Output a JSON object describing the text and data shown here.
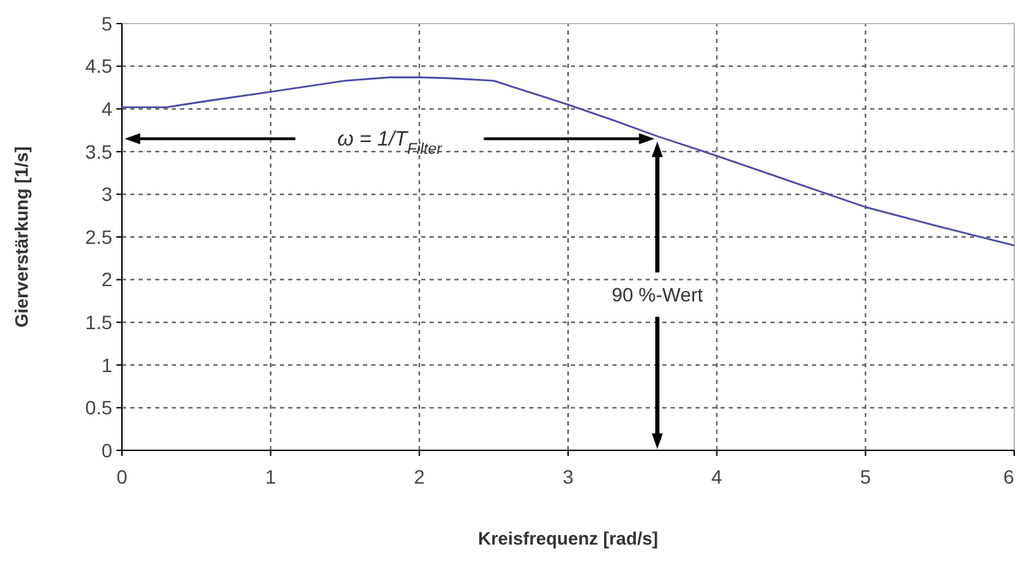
{
  "chart_data": {
    "type": "line",
    "xlabel": "Kreisfrequenz [rad/s]",
    "ylabel": "Gierverstärkung [1/s]",
    "x": [
      0,
      0.3,
      0.6,
      1,
      1.5,
      1.8,
      2,
      2.2,
      2.5,
      3,
      3.3,
      3.6,
      4,
      4.5,
      5,
      5.5,
      6
    ],
    "series": [
      {
        "color": "#4a4aa8",
        "values": [
          4.02,
          4.02,
          4.1,
          4.2,
          4.33,
          4.37,
          4.37,
          4.36,
          4.33,
          4.05,
          3.87,
          3.68,
          3.45,
          3.15,
          2.85,
          2.62,
          2.4
        ]
      }
    ],
    "xlim": [
      0,
      6
    ],
    "xticks": [
      0,
      1,
      2,
      3,
      4,
      5,
      6
    ],
    "ylim": [
      0,
      5
    ],
    "yticks": [
      0,
      0.5,
      1,
      1.5,
      2,
      2.5,
      3,
      3.5,
      4,
      4.5,
      5
    ],
    "grid": true,
    "marker": "none",
    "line_style": "solid",
    "ref_lines": [
      {
        "axis": "x",
        "value": 3.6
      },
      {
        "axis": "y",
        "value": 3.65
      }
    ],
    "annotations": [
      "ω = 1/T$_{Filter}$",
      "90 %-Wert"
    ]
  }
}
